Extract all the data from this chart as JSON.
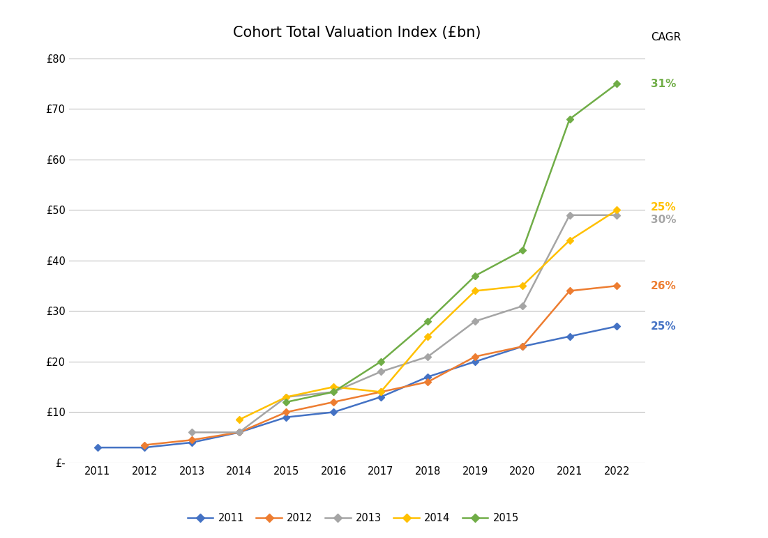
{
  "title": "Cohort Total Valuation Index (£bn)",
  "years": [
    2011,
    2012,
    2013,
    2014,
    2015,
    2016,
    2017,
    2018,
    2019,
    2020,
    2021,
    2022
  ],
  "series": {
    "2011": {
      "values": [
        3,
        3,
        4,
        6,
        9,
        10,
        13,
        17,
        20,
        23,
        25,
        27
      ],
      "color": "#4472C4",
      "marker": "D",
      "cagr": "25%",
      "start_year": 2011
    },
    "2012": {
      "values": [
        null,
        3.5,
        4.5,
        6,
        10,
        12,
        14,
        16,
        21,
        23,
        34,
        35
      ],
      "color": "#ED7D31",
      "marker": "D",
      "cagr": "26%",
      "start_year": 2012
    },
    "2013": {
      "values": [
        null,
        null,
        6,
        6,
        13,
        14,
        18,
        21,
        28,
        31,
        49,
        49
      ],
      "color": "#A5A5A5",
      "marker": "D",
      "cagr": "30%",
      "start_year": 2013
    },
    "2014": {
      "values": [
        null,
        null,
        null,
        8.5,
        13,
        15,
        14,
        25,
        34,
        35,
        44,
        50
      ],
      "color": "#FFC000",
      "marker": "D",
      "cagr": "25%",
      "start_year": 2014
    },
    "2015": {
      "values": [
        null,
        null,
        null,
        null,
        12,
        14,
        20,
        28,
        37,
        42,
        68,
        75
      ],
      "color": "#70AD47",
      "marker": "D",
      "cagr": "31%",
      "start_year": 2015
    }
  },
  "ylim": [
    0,
    82
  ],
  "yticks": [
    0,
    10,
    20,
    30,
    40,
    50,
    60,
    70,
    80
  ],
  "ytick_labels": [
    "£-",
    "£10",
    "£20",
    "£30",
    "£40",
    "£50",
    "£60",
    "£70",
    "£80"
  ],
  "background_color": "#FFFFFF",
  "grid_color": "#C0C0C0",
  "cagr_label": "CAGR",
  "cagr_entries": [
    {
      "key": "2015",
      "y": 75,
      "text": "31%",
      "color": "#70AD47"
    },
    {
      "key": "2014",
      "y": 50.5,
      "text": "25%",
      "color": "#FFC000"
    },
    {
      "key": "2013",
      "y": 48,
      "text": "30%",
      "color": "#A5A5A5"
    },
    {
      "key": "2012",
      "y": 35,
      "text": "26%",
      "color": "#ED7D31"
    },
    {
      "key": "2011",
      "y": 27,
      "text": "25%",
      "color": "#4472C4"
    }
  ]
}
